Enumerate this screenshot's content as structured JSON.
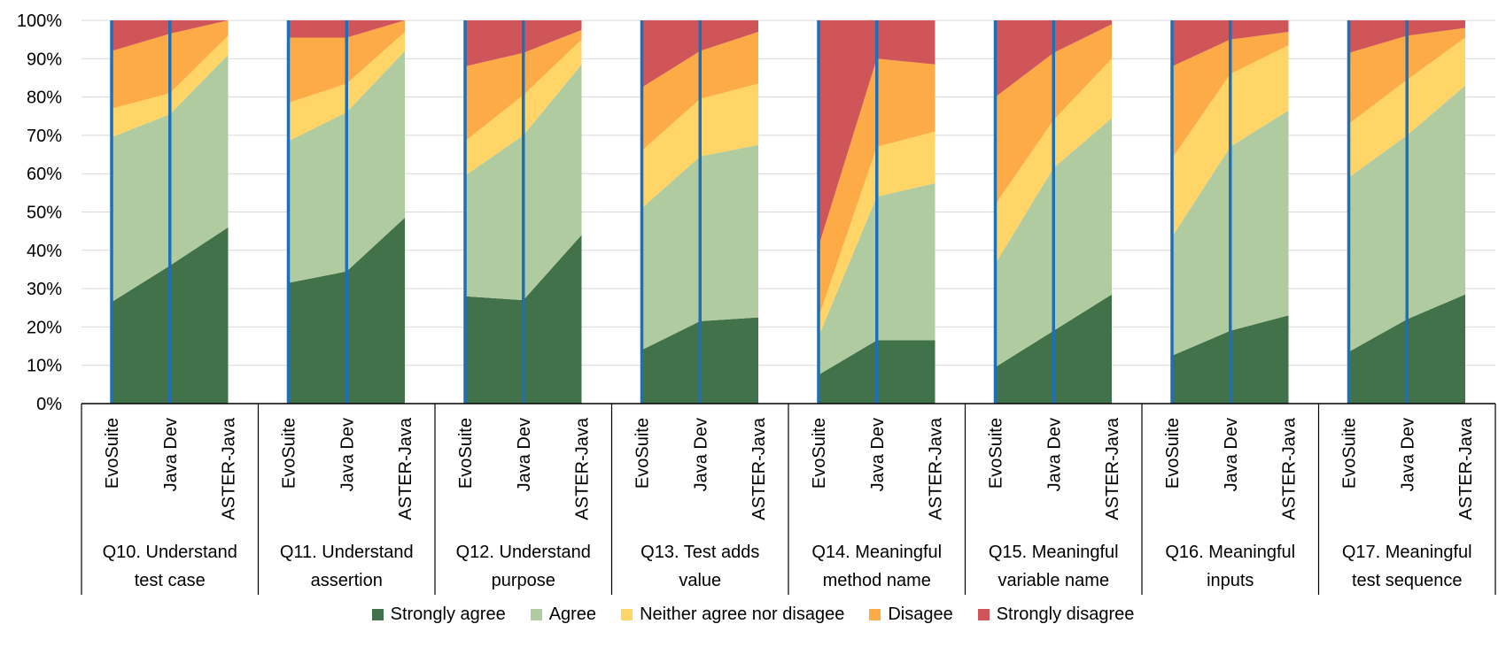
{
  "chart_data": {
    "type": "area",
    "title": "",
    "xlabel": "",
    "ylabel": "",
    "ylim": [
      0,
      100
    ],
    "y_ticks": [
      "0%",
      "10%",
      "20%",
      "30%",
      "40%",
      "50%",
      "60%",
      "70%",
      "80%",
      "90%",
      "100%"
    ],
    "grid": true,
    "legend_position": "bottom",
    "stacked": true,
    "tools": [
      "EvoSuite",
      "Java Dev",
      "ASTER-Java"
    ],
    "groups": [
      {
        "label_lines": [
          "Q10. Understand",
          "test case"
        ],
        "series": {
          "Strongly agree": [
            26.5,
            36,
            46
          ],
          "Agree": [
            43,
            39.5,
            45
          ],
          "Neither agree nor disagee": [
            7.5,
            5.5,
            5
          ],
          "Disagee": [
            15,
            15.5,
            4
          ],
          "Strongly disagree": [
            8,
            3.5,
            0
          ]
        }
      },
      {
        "label_lines": [
          "Q11. Understand",
          "assertion"
        ],
        "series": {
          "Strongly agree": [
            31.5,
            34.5,
            48.5
          ],
          "Agree": [
            37,
            41.5,
            43.5
          ],
          "Neither agree nor disagee": [
            10,
            7.5,
            5
          ],
          "Disagee": [
            17,
            12,
            3
          ],
          "Strongly disagree": [
            4.5,
            4.5,
            0
          ]
        }
      },
      {
        "label_lines": [
          "Q12. Understand",
          "purpose"
        ],
        "series": {
          "Strongly agree": [
            28,
            27,
            44
          ],
          "Agree": [
            31.5,
            43,
            44.5
          ],
          "Neither agree nor disagee": [
            9,
            10.5,
            6.5
          ],
          "Disagee": [
            19.5,
            11,
            2.5
          ],
          "Strongly disagree": [
            12,
            8.5,
            2.5
          ]
        }
      },
      {
        "label_lines": [
          "Q13. Test adds",
          "value"
        ],
        "series": {
          "Strongly agree": [
            14,
            21.5,
            22.5
          ],
          "Agree": [
            37,
            43,
            45
          ],
          "Neither agree nor disagee": [
            15,
            15,
            16
          ],
          "Disagee": [
            16.5,
            12.5,
            13.5
          ],
          "Strongly disagree": [
            17.5,
            8,
            3
          ]
        }
      },
      {
        "label_lines": [
          "Q14. Meaningful",
          "method name"
        ],
        "series": {
          "Strongly agree": [
            7.5,
            16.5,
            16.5
          ],
          "Agree": [
            10,
            37.5,
            41
          ],
          "Neither agree nor disagee": [
            5,
            13,
            13.5
          ],
          "Disagee": [
            18.5,
            23,
            17.5
          ],
          "Strongly disagree": [
            59,
            10,
            11.5
          ]
        }
      },
      {
        "label_lines": [
          "Q15. Meaningful",
          "variable name"
        ],
        "series": {
          "Strongly agree": [
            9.5,
            19,
            28.5
          ],
          "Agree": [
            27,
            42.5,
            46
          ],
          "Neither agree nor disagee": [
            15.5,
            12.5,
            15.5
          ],
          "Disagee": [
            28,
            17.5,
            9
          ],
          "Strongly disagree": [
            20,
            8.5,
            1
          ]
        }
      },
      {
        "label_lines": [
          "Q16. Meaningful",
          "inputs"
        ],
        "series": {
          "Strongly agree": [
            12.5,
            19,
            23
          ],
          "Agree": [
            31,
            48,
            53.5
          ],
          "Neither agree nor disagee": [
            20.5,
            19,
            17
          ],
          "Disagee": [
            24,
            9,
            3.5
          ],
          "Strongly disagree": [
            12,
            5,
            3
          ]
        }
      },
      {
        "label_lines": [
          "Q17. Meaningful",
          "test sequence"
        ],
        "series": {
          "Strongly agree": [
            13.5,
            22,
            28.5
          ],
          "Agree": [
            45.5,
            48,
            54.5
          ],
          "Neither agree nor disagee": [
            14,
            14.5,
            12.5
          ],
          "Disagee": [
            18.5,
            11.5,
            2.5
          ],
          "Strongly disagree": [
            8.5,
            4,
            2
          ]
        }
      }
    ],
    "series_names": [
      "Strongly agree",
      "Agree",
      "Neither agree nor disagee",
      "Disagee",
      "Strongly disagree"
    ],
    "colors": {
      "Strongly agree": "#41724a",
      "Agree": "#b0cba0",
      "Neither agree nor disagee": "#fed566",
      "Disagee": "#fdab46",
      "Strongly disagree": "#d05558",
      "separator": "#1f6fb7"
    }
  }
}
